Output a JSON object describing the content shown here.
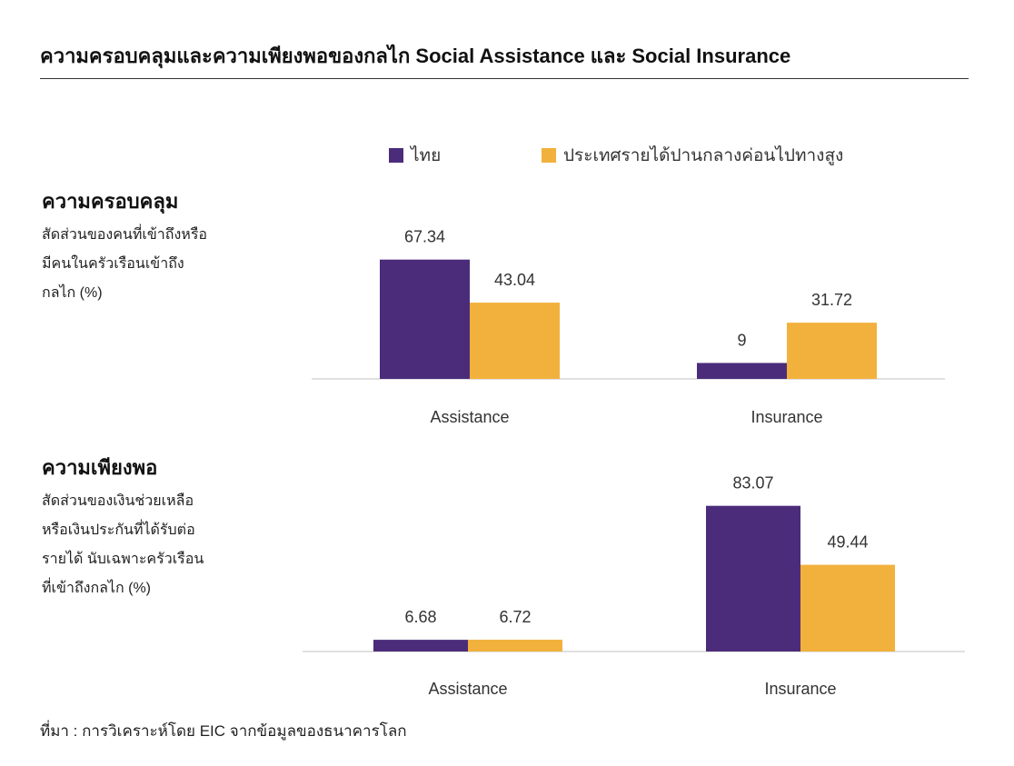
{
  "title": "ความครอบคลุมและความเพียงพอของกลไก Social Assistance และ Social Insurance",
  "legend": [
    {
      "label": "ไทย",
      "color": "#4b2c7a"
    },
    {
      "label": "ประเทศรายได้ปานกลางค่อนไปทางสูง",
      "color": "#f2b13c"
    }
  ],
  "panels": [
    {
      "heading": "ความครอบคลุม",
      "description": "สัดส่วนของคนที่เข้าถึงหรือ\nมีคนในครัวเรือนเข้าถึง\nกลไก (%)"
    },
    {
      "heading": "ความเพียงพอ",
      "description": "สัดส่วนของเงินช่วยเหลือ\nหรือเงินประกันที่ได้รับต่อ\nรายได้ นับเฉพาะครัวเรือน\nที่เข้าถึงกลไก (%)"
    }
  ],
  "source": "ที่มา : การวิเคราะห์โดย EIC จากข้อมูลของธนาคารโลก",
  "chart_data": [
    {
      "type": "bar",
      "categories": [
        "Assistance",
        "Insurance"
      ],
      "series": [
        {
          "name": "ไทย",
          "values": [
            67.34,
            9
          ],
          "labels": [
            "67.34",
            "9"
          ]
        },
        {
          "name": "ประเทศรายได้ปานกลางค่อนไปทางสูง",
          "values": [
            43.04,
            31.72
          ],
          "labels": [
            "43.04",
            "31.72"
          ]
        }
      ],
      "ylim": [
        0,
        100
      ],
      "grid": false
    },
    {
      "type": "bar",
      "categories": [
        "Assistance",
        "Insurance"
      ],
      "series": [
        {
          "name": "ไทย",
          "values": [
            6.68,
            83.07
          ],
          "labels": [
            "6.68",
            "83.07"
          ]
        },
        {
          "name": "ประเทศรายได้ปานกลางค่อนไปทางสูง",
          "values": [
            6.72,
            49.44
          ],
          "labels": [
            "6.72",
            "49.44"
          ]
        }
      ],
      "ylim": [
        0,
        100
      ],
      "grid": false
    }
  ]
}
